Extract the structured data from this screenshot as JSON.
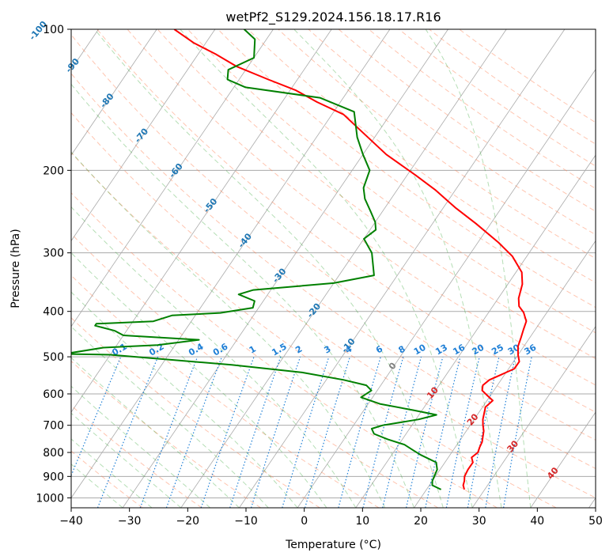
{
  "chart_data": {
    "type": "line",
    "subtype": "skew-t log-p diagram",
    "title": "wetPf2_S129.2024.156.18.17.R16",
    "xlabel": "Temperature (°C)",
    "ylabel": "Pressure (hPa)",
    "xlim": [
      -40,
      50
    ],
    "ylim": [
      1050,
      100
    ],
    "y_scale": "log",
    "grid": true,
    "xticks": [
      "−40",
      "−30",
      "−20",
      "−10",
      "0",
      "10",
      "20",
      "30",
      "40",
      "50"
    ],
    "yticks": [
      "100",
      "200",
      "300",
      "400",
      "500",
      "600",
      "700",
      "800",
      "900",
      "1000"
    ],
    "series": [
      {
        "role": "temperature",
        "color": "#ff0000",
        "points": [
          [
            26.5,
            960
          ],
          [
            25.8,
            940
          ],
          [
            25.5,
            920
          ],
          [
            25.0,
            900
          ],
          [
            24.8,
            870
          ],
          [
            24.8,
            840
          ],
          [
            24.0,
            820
          ],
          [
            24.5,
            800
          ],
          [
            24.2,
            780
          ],
          [
            24.0,
            760
          ],
          [
            23.5,
            740
          ],
          [
            23.0,
            720
          ],
          [
            22.2,
            700
          ],
          [
            21.5,
            680
          ],
          [
            21.0,
            660
          ],
          [
            20.5,
            640
          ],
          [
            21.0,
            620
          ],
          [
            19.5,
            605
          ],
          [
            18.0,
            590
          ],
          [
            17.5,
            575
          ],
          [
            18.0,
            560
          ],
          [
            19.5,
            545
          ],
          [
            21.0,
            530
          ],
          [
            21.0,
            512
          ],
          [
            20.0,
            495
          ],
          [
            19.0,
            475
          ],
          [
            18.5,
            455
          ],
          [
            18.0,
            438
          ],
          [
            17.5,
            420
          ],
          [
            16.0,
            402
          ],
          [
            14.5,
            390
          ],
          [
            13.5,
            375
          ],
          [
            12.5,
            350
          ],
          [
            11.0,
            330
          ],
          [
            7.5,
            305
          ],
          [
            3.5,
            285
          ],
          [
            -2.5,
            260
          ],
          [
            -8.0,
            240
          ],
          [
            -13.5,
            220
          ],
          [
            -18.5,
            205
          ],
          [
            -26.0,
            185
          ],
          [
            -33.0,
            165
          ],
          [
            -38.0,
            152
          ],
          [
            -44.0,
            143
          ],
          [
            -49.0,
            135
          ],
          [
            -55.0,
            128
          ],
          [
            -62.0,
            120
          ],
          [
            -67.0,
            113
          ],
          [
            -72.0,
            107
          ],
          [
            -77.0,
            100
          ]
        ]
      },
      {
        "role": "dewpoint",
        "color": "#008000",
        "points": [
          [
            22.5,
            960
          ],
          [
            20.5,
            940
          ],
          [
            20.0,
            920
          ],
          [
            19.8,
            900
          ],
          [
            19.5,
            870
          ],
          [
            18.5,
            840
          ],
          [
            15.0,
            810
          ],
          [
            13.0,
            790
          ],
          [
            11.0,
            770
          ],
          [
            7.5,
            750
          ],
          [
            4.5,
            730
          ],
          [
            3.5,
            712
          ],
          [
            5.0,
            700
          ],
          [
            10.5,
            680
          ],
          [
            13.0,
            665
          ],
          [
            8.5,
            650
          ],
          [
            2.0,
            630
          ],
          [
            -2.0,
            610
          ],
          [
            -1.0,
            590
          ],
          [
            -2.5,
            575
          ],
          [
            -7.0,
            560
          ],
          [
            -15.0,
            540
          ],
          [
            -28.0,
            520
          ],
          [
            -50.0,
            495
          ],
          [
            -58.0,
            493
          ],
          [
            -52.0,
            478
          ],
          [
            -43.0,
            472
          ],
          [
            -36.5,
            460
          ],
          [
            -50.0,
            450
          ],
          [
            -52.0,
            440
          ],
          [
            -56.0,
            429
          ],
          [
            -56.0,
            425
          ],
          [
            -46.5,
            420
          ],
          [
            -44.0,
            408
          ],
          [
            -36.0,
            403
          ],
          [
            -31.0,
            393
          ],
          [
            -31.5,
            380
          ],
          [
            -35.0,
            368
          ],
          [
            -33.0,
            360
          ],
          [
            -20.0,
            348
          ],
          [
            -14.0,
            335
          ],
          [
            -17.0,
            300
          ],
          [
            -20.0,
            280
          ],
          [
            -19.0,
            268
          ],
          [
            -20.0,
            258
          ],
          [
            -22.0,
            245
          ],
          [
            -24.5,
            230
          ],
          [
            -26.0,
            218
          ],
          [
            -27.0,
            200
          ],
          [
            -30.0,
            185
          ],
          [
            -33.0,
            170
          ],
          [
            -36.5,
            150
          ],
          [
            -44.0,
            140
          ],
          [
            -58.0,
            133
          ],
          [
            -62.0,
            128
          ],
          [
            -63.0,
            122
          ],
          [
            -60.0,
            115
          ],
          [
            -62.0,
            105
          ],
          [
            -65.0,
            100
          ]
        ]
      }
    ],
    "isotherm_labels": [
      "-100",
      "-90",
      "-80",
      "-70",
      "-60",
      "-50",
      "-40",
      "-30",
      "-20",
      "-10",
      "0",
      "10",
      "20",
      "30",
      "40"
    ],
    "mixing_ratio_labels": [
      "0.1",
      "0.2",
      "0.4",
      "0.6",
      "1",
      "1.5",
      "2",
      "3",
      "4",
      "6",
      "8",
      "10",
      "13",
      "16",
      "20",
      "25",
      "30",
      "36"
    ],
    "background_colors": {
      "isotherm": "#aaaaaa",
      "dry_adiabat": "#ff7f50",
      "moist_adiabat": "#2ca02c",
      "mixing_ratio": "#1e7fd6",
      "isobar": "#aaaaaa",
      "cold_label": "#1f77b4",
      "warm_label": "#d62728",
      "zero_label": "#808080"
    }
  }
}
